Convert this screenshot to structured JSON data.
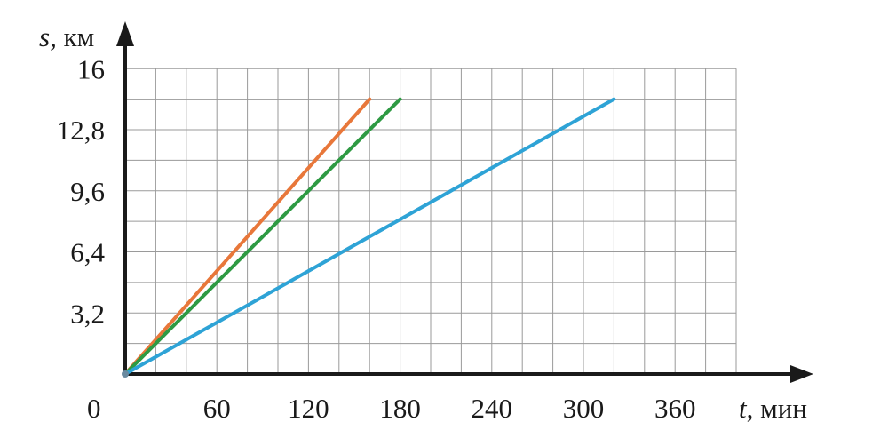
{
  "chart_data": {
    "type": "line",
    "xlabel": {
      "var": "t",
      "unit": ", мин"
    },
    "ylabel": {
      "var": "s",
      "unit": ", км"
    },
    "origin_label": "0",
    "xlim": [
      0,
      400
    ],
    "ylim": [
      0,
      16
    ],
    "x_ticks": [
      {
        "value": 60,
        "label": "60"
      },
      {
        "value": 120,
        "label": "120"
      },
      {
        "value": 180,
        "label": "180"
      },
      {
        "value": 240,
        "label": "240"
      },
      {
        "value": 300,
        "label": "300"
      },
      {
        "value": 360,
        "label": "360"
      }
    ],
    "y_ticks": [
      {
        "value": 3.2,
        "label": "3,2"
      },
      {
        "value": 6.4,
        "label": "6,4"
      },
      {
        "value": 9.6,
        "label": "9,6"
      },
      {
        "value": 12.8,
        "label": "12,8"
      },
      {
        "value": 16,
        "label": "16"
      }
    ],
    "grid": true,
    "grid_x_step": 20,
    "grid_y_step": 1.6,
    "series": [
      {
        "color": "#e8773a",
        "points": [
          [
            0,
            0
          ],
          [
            160,
            14.4
          ]
        ]
      },
      {
        "color": "#2e9a43",
        "points": [
          [
            0,
            0
          ],
          [
            180,
            14.4
          ]
        ]
      },
      {
        "color": "#2ea3d6",
        "points": [
          [
            0,
            0
          ],
          [
            320,
            14.4
          ]
        ]
      }
    ],
    "grid_color": "#9a9a9a",
    "axis_color": "#1a1a1a"
  }
}
